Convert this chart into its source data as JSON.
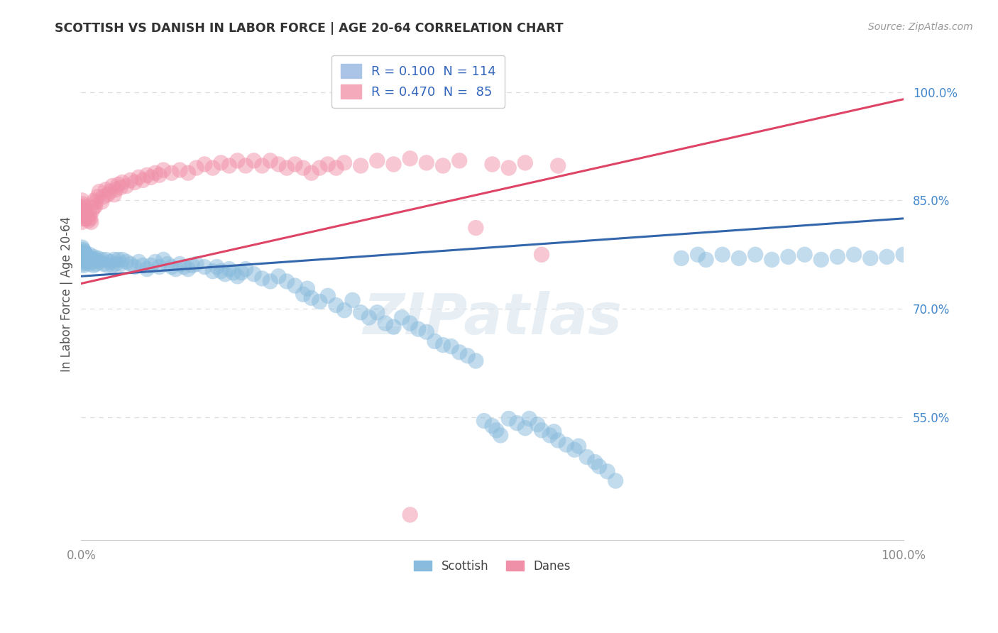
{
  "title": "SCOTTISH VS DANISH IN LABOR FORCE | AGE 20-64 CORRELATION CHART",
  "source": "Source: ZipAtlas.com",
  "ylabel": "In Labor Force | Age 20-64",
  "xlim": [
    0.0,
    1.0
  ],
  "ylim": [
    0.38,
    1.06
  ],
  "ytick_labels": [
    "55.0%",
    "70.0%",
    "85.0%",
    "100.0%"
  ],
  "ytick_vals": [
    0.55,
    0.7,
    0.85,
    1.0
  ],
  "xtick_labels": [
    "0.0%",
    "100.0%"
  ],
  "xtick_vals": [
    0.0,
    1.0
  ],
  "legend_label1": "R = 0.100  N = 114",
  "legend_label2": "R = 0.470  N =  85",
  "legend_color1": "#aac4e8",
  "legend_color2": "#f4aabb",
  "scatter_legend1": "Scottish",
  "scatter_legend2": "Danes",
  "blue_color": "#88bbdd",
  "pink_color": "#f090a8",
  "blue_line_color": "#3366aa",
  "pink_line_color": "#dd4466",
  "watermark": "ZIPatlas",
  "background": "#ffffff",
  "grid_color": "#dddddd",
  "blue_line": {
    "x0": 0.0,
    "y0": 0.745,
    "x1": 1.0,
    "y1": 0.825
  },
  "pink_line": {
    "x0": 0.0,
    "y0": 0.735,
    "x1": 1.0,
    "y1": 0.99
  },
  "blue_scatter": [
    [
      0.001,
      0.785
    ],
    [
      0.001,
      0.778
    ],
    [
      0.001,
      0.772
    ],
    [
      0.001,
      0.768
    ],
    [
      0.002,
      0.782
    ],
    [
      0.002,
      0.775
    ],
    [
      0.002,
      0.768
    ],
    [
      0.002,
      0.762
    ],
    [
      0.003,
      0.78
    ],
    [
      0.003,
      0.773
    ],
    [
      0.003,
      0.766
    ],
    [
      0.003,
      0.76
    ],
    [
      0.004,
      0.778
    ],
    [
      0.004,
      0.771
    ],
    [
      0.004,
      0.764
    ],
    [
      0.005,
      0.776
    ],
    [
      0.005,
      0.769
    ],
    [
      0.006,
      0.774
    ],
    [
      0.006,
      0.767
    ],
    [
      0.007,
      0.772
    ],
    [
      0.008,
      0.77
    ],
    [
      0.009,
      0.768
    ],
    [
      0.01,
      0.775
    ],
    [
      0.01,
      0.762
    ],
    [
      0.012,
      0.77
    ],
    [
      0.013,
      0.765
    ],
    [
      0.015,
      0.772
    ],
    [
      0.015,
      0.76
    ],
    [
      0.017,
      0.768
    ],
    [
      0.018,
      0.762
    ],
    [
      0.02,
      0.77
    ],
    [
      0.022,
      0.765
    ],
    [
      0.025,
      0.768
    ],
    [
      0.027,
      0.762
    ],
    [
      0.03,
      0.768
    ],
    [
      0.032,
      0.76
    ],
    [
      0.035,
      0.765
    ],
    [
      0.038,
      0.76
    ],
    [
      0.04,
      0.768
    ],
    [
      0.042,
      0.762
    ],
    [
      0.045,
      0.768
    ],
    [
      0.048,
      0.762
    ],
    [
      0.05,
      0.768
    ],
    [
      0.055,
      0.765
    ],
    [
      0.06,
      0.762
    ],
    [
      0.065,
      0.758
    ],
    [
      0.07,
      0.765
    ],
    [
      0.075,
      0.76
    ],
    [
      0.08,
      0.755
    ],
    [
      0.085,
      0.76
    ],
    [
      0.09,
      0.765
    ],
    [
      0.095,
      0.758
    ],
    [
      0.1,
      0.768
    ],
    [
      0.105,
      0.762
    ],
    [
      0.11,
      0.758
    ],
    [
      0.115,
      0.755
    ],
    [
      0.12,
      0.762
    ],
    [
      0.125,
      0.758
    ],
    [
      0.13,
      0.755
    ],
    [
      0.135,
      0.76
    ],
    [
      0.14,
      0.762
    ],
    [
      0.15,
      0.758
    ],
    [
      0.16,
      0.752
    ],
    [
      0.165,
      0.758
    ],
    [
      0.17,
      0.752
    ],
    [
      0.175,
      0.748
    ],
    [
      0.18,
      0.755
    ],
    [
      0.185,
      0.75
    ],
    [
      0.19,
      0.745
    ],
    [
      0.195,
      0.75
    ],
    [
      0.2,
      0.755
    ],
    [
      0.21,
      0.748
    ],
    [
      0.22,
      0.742
    ],
    [
      0.23,
      0.738
    ],
    [
      0.24,
      0.745
    ],
    [
      0.25,
      0.738
    ],
    [
      0.26,
      0.732
    ],
    [
      0.27,
      0.72
    ],
    [
      0.275,
      0.728
    ],
    [
      0.28,
      0.715
    ],
    [
      0.29,
      0.71
    ],
    [
      0.3,
      0.718
    ],
    [
      0.31,
      0.705
    ],
    [
      0.32,
      0.698
    ],
    [
      0.33,
      0.712
    ],
    [
      0.34,
      0.695
    ],
    [
      0.35,
      0.688
    ],
    [
      0.36,
      0.695
    ],
    [
      0.37,
      0.68
    ],
    [
      0.38,
      0.675
    ],
    [
      0.39,
      0.688
    ],
    [
      0.4,
      0.68
    ],
    [
      0.41,
      0.672
    ],
    [
      0.42,
      0.668
    ],
    [
      0.43,
      0.655
    ],
    [
      0.44,
      0.65
    ],
    [
      0.45,
      0.648
    ],
    [
      0.46,
      0.64
    ],
    [
      0.47,
      0.635
    ],
    [
      0.48,
      0.628
    ],
    [
      0.49,
      0.545
    ],
    [
      0.5,
      0.538
    ],
    [
      0.505,
      0.532
    ],
    [
      0.51,
      0.525
    ],
    [
      0.52,
      0.548
    ],
    [
      0.53,
      0.542
    ],
    [
      0.54,
      0.535
    ],
    [
      0.545,
      0.548
    ],
    [
      0.555,
      0.54
    ],
    [
      0.56,
      0.532
    ],
    [
      0.57,
      0.525
    ],
    [
      0.575,
      0.53
    ],
    [
      0.58,
      0.518
    ],
    [
      0.59,
      0.512
    ],
    [
      0.6,
      0.505
    ],
    [
      0.605,
      0.51
    ],
    [
      0.615,
      0.495
    ],
    [
      0.625,
      0.488
    ],
    [
      0.63,
      0.482
    ],
    [
      0.64,
      0.475
    ],
    [
      0.65,
      0.462
    ],
    [
      0.73,
      0.77
    ],
    [
      0.75,
      0.775
    ],
    [
      0.76,
      0.768
    ],
    [
      0.78,
      0.775
    ],
    [
      0.8,
      0.77
    ],
    [
      0.82,
      0.775
    ],
    [
      0.84,
      0.768
    ],
    [
      0.86,
      0.772
    ],
    [
      0.88,
      0.775
    ],
    [
      0.9,
      0.768
    ],
    [
      0.92,
      0.772
    ],
    [
      0.94,
      0.775
    ],
    [
      0.96,
      0.77
    ],
    [
      0.98,
      0.772
    ],
    [
      1.0,
      0.775
    ]
  ],
  "pink_scatter": [
    [
      0.001,
      0.85
    ],
    [
      0.001,
      0.84
    ],
    [
      0.001,
      0.832
    ],
    [
      0.001,
      0.82
    ],
    [
      0.002,
      0.845
    ],
    [
      0.002,
      0.835
    ],
    [
      0.002,
      0.825
    ],
    [
      0.003,
      0.842
    ],
    [
      0.003,
      0.832
    ],
    [
      0.004,
      0.838
    ],
    [
      0.004,
      0.828
    ],
    [
      0.005,
      0.835
    ],
    [
      0.005,
      0.825
    ],
    [
      0.006,
      0.832
    ],
    [
      0.007,
      0.828
    ],
    [
      0.008,
      0.825
    ],
    [
      0.009,
      0.822
    ],
    [
      0.01,
      0.83
    ],
    [
      0.011,
      0.825
    ],
    [
      0.012,
      0.82
    ],
    [
      0.013,
      0.835
    ],
    [
      0.015,
      0.84
    ],
    [
      0.016,
      0.85
    ],
    [
      0.017,
      0.842
    ],
    [
      0.018,
      0.848
    ],
    [
      0.02,
      0.855
    ],
    [
      0.022,
      0.862
    ],
    [
      0.025,
      0.848
    ],
    [
      0.027,
      0.855
    ],
    [
      0.03,
      0.865
    ],
    [
      0.032,
      0.858
    ],
    [
      0.035,
      0.862
    ],
    [
      0.038,
      0.87
    ],
    [
      0.04,
      0.858
    ],
    [
      0.042,
      0.865
    ],
    [
      0.045,
      0.872
    ],
    [
      0.048,
      0.868
    ],
    [
      0.05,
      0.875
    ],
    [
      0.055,
      0.87
    ],
    [
      0.06,
      0.878
    ],
    [
      0.065,
      0.875
    ],
    [
      0.07,
      0.882
    ],
    [
      0.075,
      0.878
    ],
    [
      0.08,
      0.885
    ],
    [
      0.085,
      0.882
    ],
    [
      0.09,
      0.888
    ],
    [
      0.095,
      0.885
    ],
    [
      0.1,
      0.892
    ],
    [
      0.11,
      0.888
    ],
    [
      0.12,
      0.892
    ],
    [
      0.13,
      0.888
    ],
    [
      0.14,
      0.895
    ],
    [
      0.15,
      0.9
    ],
    [
      0.16,
      0.895
    ],
    [
      0.17,
      0.902
    ],
    [
      0.18,
      0.898
    ],
    [
      0.19,
      0.905
    ],
    [
      0.2,
      0.898
    ],
    [
      0.21,
      0.905
    ],
    [
      0.22,
      0.898
    ],
    [
      0.23,
      0.905
    ],
    [
      0.24,
      0.9
    ],
    [
      0.25,
      0.895
    ],
    [
      0.26,
      0.9
    ],
    [
      0.27,
      0.895
    ],
    [
      0.28,
      0.888
    ],
    [
      0.29,
      0.895
    ],
    [
      0.3,
      0.9
    ],
    [
      0.31,
      0.895
    ],
    [
      0.32,
      0.902
    ],
    [
      0.34,
      0.898
    ],
    [
      0.36,
      0.905
    ],
    [
      0.38,
      0.9
    ],
    [
      0.4,
      0.908
    ],
    [
      0.42,
      0.902
    ],
    [
      0.44,
      0.898
    ],
    [
      0.46,
      0.905
    ],
    [
      0.48,
      0.812
    ],
    [
      0.5,
      0.9
    ],
    [
      0.52,
      0.895
    ],
    [
      0.54,
      0.902
    ],
    [
      0.56,
      0.775
    ],
    [
      0.58,
      0.898
    ],
    [
      0.4,
      0.415
    ]
  ]
}
